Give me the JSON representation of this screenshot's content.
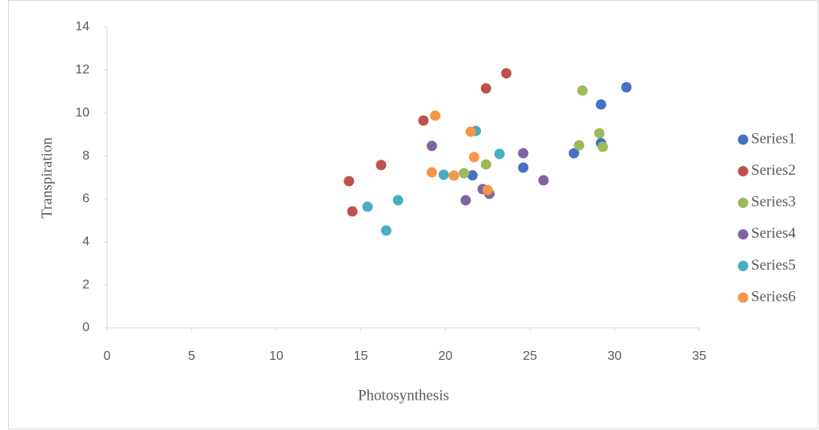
{
  "chart_data": {
    "type": "scatter",
    "x_label": "Photosynthesis",
    "y_label": "Transpiration",
    "xlim": [
      0,
      35
    ],
    "ylim": [
      0,
      14
    ],
    "xticks": [
      0,
      5,
      10,
      15,
      20,
      25,
      30,
      35
    ],
    "yticks": [
      0,
      2,
      4,
      6,
      8,
      10,
      12,
      14
    ],
    "legend": "right",
    "series": [
      {
        "name": "Series1",
        "color": "#4472c4",
        "x": [
          21.6,
          24.6,
          27.6,
          29.2,
          29.2,
          30.7
        ],
        "values": [
          7.1,
          7.46,
          8.13,
          8.6,
          10.4,
          11.2
        ]
      },
      {
        "name": "Series2",
        "color": "#c0504d",
        "x": [
          14.3,
          14.5,
          16.2,
          18.7,
          22.4,
          23.6
        ],
        "values": [
          6.83,
          5.42,
          7.58,
          9.65,
          11.15,
          11.85
        ]
      },
      {
        "name": "Series3",
        "color": "#9bbb59",
        "x": [
          21.1,
          22.4,
          27.9,
          28.1,
          29.1,
          29.3
        ],
        "values": [
          7.2,
          7.61,
          8.5,
          11.05,
          9.06,
          8.43
        ]
      },
      {
        "name": "Series4",
        "color": "#8064a2",
        "x": [
          19.2,
          21.2,
          22.2,
          22.6,
          24.6,
          25.8
        ],
        "values": [
          8.47,
          5.94,
          6.46,
          6.24,
          8.13,
          6.87
        ]
      },
      {
        "name": "Series5",
        "color": "#4bacc6",
        "x": [
          15.4,
          16.5,
          17.2,
          19.9,
          21.8,
          23.2
        ],
        "values": [
          5.64,
          4.53,
          5.94,
          7.13,
          9.17,
          8.1
        ]
      },
      {
        "name": "Series6",
        "color": "#f79646",
        "x": [
          19.2,
          19.4,
          20.5,
          21.5,
          21.7,
          22.5
        ],
        "values": [
          7.24,
          9.88,
          7.09,
          9.13,
          7.95,
          6.42
        ]
      }
    ]
  }
}
